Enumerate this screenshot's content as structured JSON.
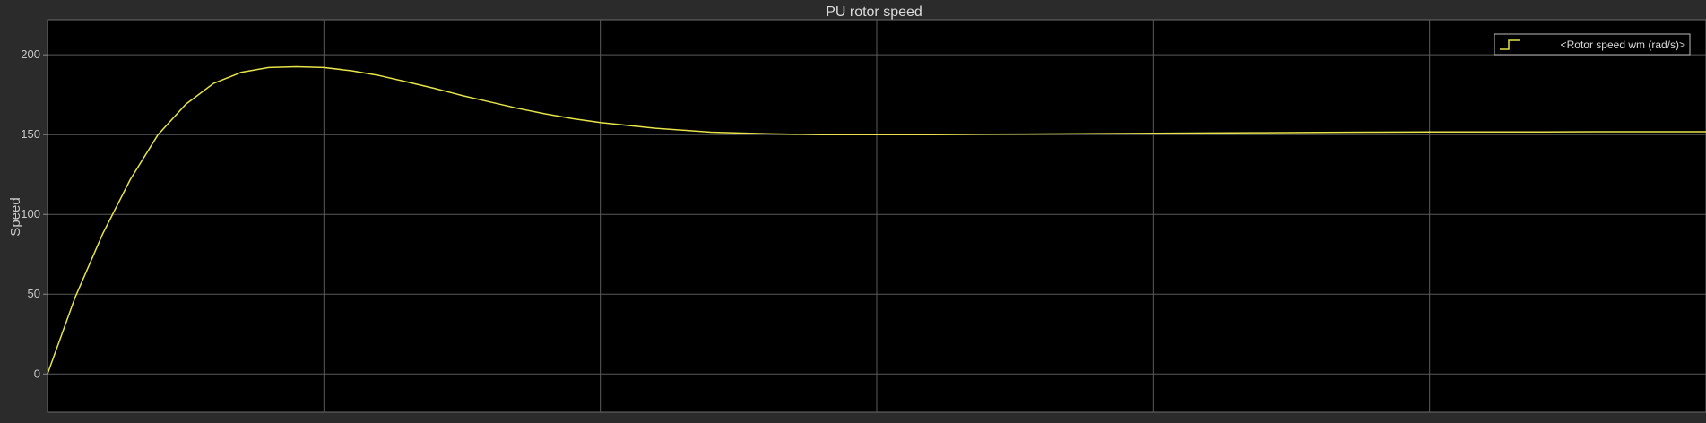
{
  "chart_data": {
    "type": "line",
    "title": "PU rotor speed",
    "xlabel": "",
    "ylabel": "Speed",
    "xlim": [
      0,
      6
    ],
    "ylim": [
      -24,
      222
    ],
    "x_ticks": [
      0,
      1,
      2,
      3,
      4,
      5,
      6
    ],
    "y_ticks": [
      0,
      50,
      100,
      150,
      200
    ],
    "y_tick_labels": [
      "0",
      "50",
      "100",
      "150",
      "200"
    ],
    "grid": true,
    "legend_position": "top-right",
    "series": [
      {
        "name": "<Rotor speed wm (rad/s)>",
        "color": "#e6e44a",
        "x": [
          0,
          0.1,
          0.2,
          0.3,
          0.4,
          0.5,
          0.6,
          0.7,
          0.8,
          0.9,
          1.0,
          1.1,
          1.2,
          1.3,
          1.4,
          1.5,
          1.6,
          1.7,
          1.8,
          1.9,
          2.0,
          2.2,
          2.4,
          2.6,
          2.8,
          3.0,
          3.2,
          3.4,
          3.6,
          3.8,
          4.0,
          4.2,
          4.4,
          4.6,
          4.8,
          5.0,
          5.2,
          5.4,
          5.6,
          5.8,
          6.0
        ],
        "y": [
          0,
          48,
          88,
          122,
          150,
          169,
          182,
          189,
          192,
          192.5,
          192,
          190,
          187,
          183,
          179,
          174.5,
          170.5,
          166.5,
          163,
          160,
          157.5,
          154,
          151.5,
          150.5,
          150,
          150,
          150,
          150.2,
          150.4,
          150.6,
          150.8,
          151,
          151.2,
          151.4,
          151.5,
          151.6,
          151.7,
          151.7,
          151.8,
          151.8,
          151.8
        ]
      }
    ]
  },
  "colors": {
    "background": "#2b2b2b",
    "plot_area": "#000000",
    "grid": "#5a5a5a",
    "text": "#c8c8c8"
  }
}
